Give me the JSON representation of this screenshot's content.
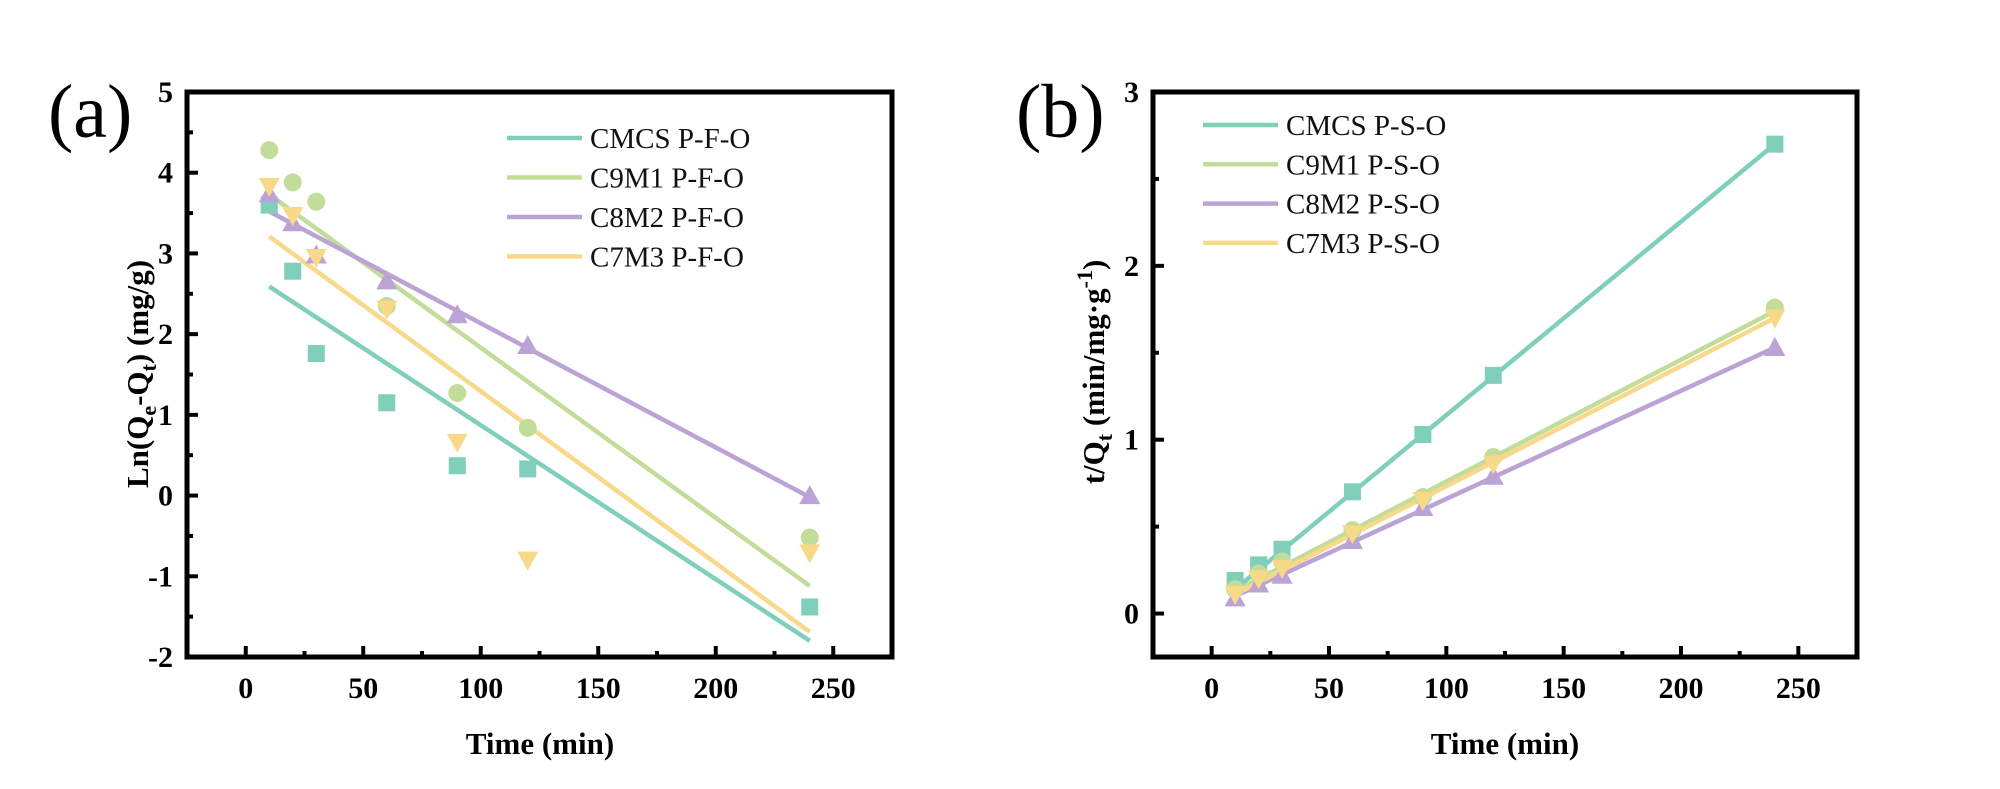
{
  "chart_data": [
    {
      "panel_label": "(a)",
      "type": "scatter",
      "title": "",
      "xlabel": "Time (min)",
      "ylabel_parts": {
        "main": "Ln(Q",
        "sub1": "e",
        "mid": "-Q",
        "sub2": "t",
        "end": ") (mg/g)"
      },
      "ylabel": "Ln(Qe-Qt) (mg/g)",
      "xlim": [
        -25,
        275
      ],
      "ylim": [
        -2,
        5
      ],
      "xticks": [
        0,
        50,
        100,
        150,
        200,
        250
      ],
      "xtick_labels": [
        "0",
        "50",
        "100",
        "150",
        "200",
        "250"
      ],
      "yticks": [
        -2,
        -1,
        0,
        1,
        2,
        3,
        4,
        5
      ],
      "ytick_labels": [
        "-2",
        "-1",
        "0",
        "1",
        "2",
        "3",
        "4",
        "5"
      ],
      "grid": false,
      "legend_position": "top-right",
      "x": [
        10,
        20,
        30,
        60,
        90,
        120,
        240
      ],
      "series": [
        {
          "name": "CMCS P-F-O",
          "color": "#7fcfbb",
          "marker": "square",
          "values": [
            3.6,
            2.78,
            1.76,
            1.15,
            0.37,
            0.33,
            -1.38
          ],
          "fit": {
            "x": [
              10,
              240
            ],
            "y": [
              2.59,
              -1.8
            ]
          }
        },
        {
          "name": "C9M1 P-F-O",
          "color": "#c2dd9a",
          "marker": "circle",
          "values": [
            4.28,
            3.88,
            3.64,
            2.35,
            1.27,
            0.84,
            -0.52
          ],
          "fit": {
            "x": [
              10,
              240
            ],
            "y": [
              3.73,
              -1.12
            ]
          }
        },
        {
          "name": "C8M2 P-F-O",
          "color": "#bba3d6",
          "marker": "triangle-up",
          "values": [
            3.74,
            3.38,
            2.98,
            2.66,
            2.24,
            1.86,
            0.0
          ],
          "fit": {
            "x": [
              10,
              240
            ],
            "y": [
              3.52,
              -0.02
            ]
          }
        },
        {
          "name": "C7M3 P-F-O",
          "color": "#f8d98a",
          "marker": "triangle-down",
          "values": [
            3.83,
            3.47,
            2.95,
            2.31,
            0.66,
            -0.8,
            -0.71
          ],
          "fit": {
            "x": [
              10,
              240
            ],
            "y": [
              3.21,
              -1.69
            ]
          }
        }
      ]
    },
    {
      "panel_label": "(b)",
      "type": "line",
      "title": "",
      "xlabel": "Time (min)",
      "ylabel_parts": {
        "main": "t/Q",
        "sub": "t",
        "mid": " (min/mg·g",
        "sup": "-1",
        "end": ")"
      },
      "ylabel": "t/Qt (min/mg·g-1)",
      "xlim": [
        -25,
        275
      ],
      "ylim": [
        -0.25,
        3
      ],
      "xticks": [
        0,
        50,
        100,
        150,
        200,
        250
      ],
      "xtick_labels": [
        "0",
        "50",
        "100",
        "150",
        "200",
        "250"
      ],
      "yticks": [
        0,
        1,
        2,
        3
      ],
      "ytick_labels": [
        "0",
        "1",
        "2",
        "3"
      ],
      "grid": false,
      "legend_position": "top-left",
      "x": [
        10,
        20,
        30,
        60,
        90,
        120,
        240
      ],
      "series": [
        {
          "name": "CMCS P-S-O",
          "color": "#7fcfbb",
          "marker": "square",
          "values": [
            0.19,
            0.28,
            0.37,
            0.7,
            1.03,
            1.37,
            2.7
          ],
          "fit": {
            "x": [
              10,
              240
            ],
            "y": [
              0.14,
              2.7
            ]
          }
        },
        {
          "name": "C9M1 P-S-O",
          "color": "#c2dd9a",
          "marker": "circle",
          "values": [
            0.14,
            0.23,
            0.3,
            0.48,
            0.67,
            0.9,
            1.76
          ],
          "fit": {
            "x": [
              10,
              240
            ],
            "y": [
              0.13,
              1.74
            ]
          }
        },
        {
          "name": "C8M2 P-S-O",
          "color": "#bba3d6",
          "marker": "triangle-up",
          "values": [
            0.09,
            0.17,
            0.22,
            0.42,
            0.61,
            0.79,
            1.53
          ],
          "fit": {
            "x": [
              10,
              240
            ],
            "y": [
              0.1,
              1.53
            ]
          }
        },
        {
          "name": "C7M3 P-S-O",
          "color": "#f8d98a",
          "marker": "triangle-down",
          "values": [
            0.11,
            0.2,
            0.26,
            0.46,
            0.65,
            0.86,
            1.7
          ],
          "fit": {
            "x": [
              10,
              240
            ],
            "y": [
              0.11,
              1.7
            ]
          }
        }
      ]
    }
  ]
}
